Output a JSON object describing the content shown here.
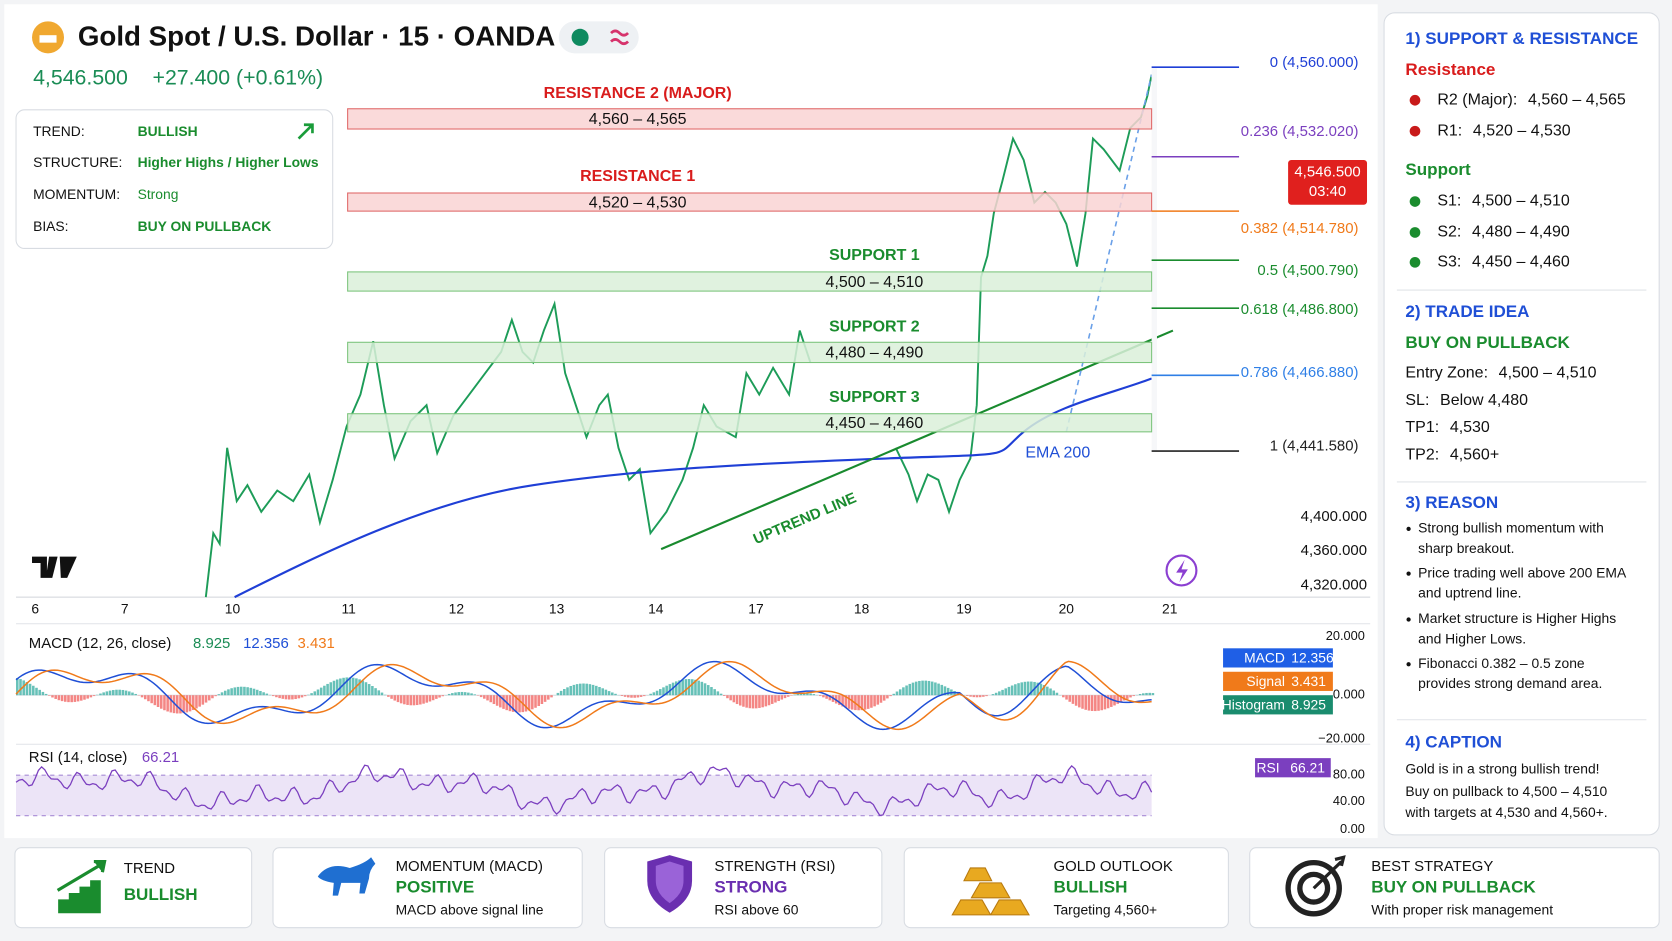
{
  "header": {
    "title": "Gold Spot / U.S. Dollar · 15 · OANDA",
    "price": "4,546.500",
    "change": "+27.400 (+0.61%)"
  },
  "summary": [
    {
      "label": "TREND:",
      "value": "BULLISH"
    },
    {
      "label": "STRUCTURE:",
      "value": "Higher Highs / Higher Lows"
    },
    {
      "label": "MOMENTUM:",
      "value": "Strong"
    },
    {
      "label": "BIAS:",
      "value": "BUY ON PULLBACK"
    }
  ],
  "zones": [
    {
      "title": "RESISTANCE 2 (MAJOR)",
      "range": "4,560 – 4,565"
    },
    {
      "title": "RESISTANCE 1",
      "range": "4,520 – 4,530"
    },
    {
      "title": "SUPPORT 1",
      "range": "4,500 – 4,510"
    },
    {
      "title": "SUPPORT 2",
      "range": "4,480 – 4,490"
    },
    {
      "title": "SUPPORT 3",
      "range": "4,450 – 4,460"
    }
  ],
  "annotations": {
    "uptrend": "UPTREND LINE",
    "ema": "EMA 200"
  },
  "fib": [
    "0 (4,560.000)",
    "0.236 (4,532.020)",
    "0.382 (4,514.780)",
    "0.5 (4,500.790)",
    "0.618 (4,486.800)",
    "0.786 (4,466.880)",
    "1 (4,441.580)"
  ],
  "price_tag": {
    "price": "4,546.500",
    "countdown": "03:40"
  },
  "price_axis": [
    "4,400.000",
    "4,360.000",
    "4,320.000"
  ],
  "dates": [
    "6",
    "7",
    "10",
    "11",
    "12",
    "13",
    "14",
    "17",
    "18",
    "19",
    "20",
    "21"
  ],
  "macd": {
    "title": "MACD (12, 26, close)",
    "values": [
      "8.925",
      "12.356",
      "3.431"
    ],
    "tags": [
      {
        "name": "MACD",
        "value": "12.356"
      },
      {
        "name": "Signal",
        "value": "3.431"
      },
      {
        "name": "Histogram",
        "value": "8.925"
      }
    ],
    "axis": [
      "20.000",
      "0.000",
      "−20.000"
    ]
  },
  "rsi": {
    "title": "RSI (14, close)",
    "value": "66.21",
    "tag": {
      "name": "RSI",
      "value": "66.21"
    },
    "axis": [
      "80.00",
      "40.00",
      "0.00"
    ]
  },
  "panel": {
    "sr": {
      "heading": "1) SUPPORT & RESISTANCE",
      "resistance_title": "Resistance",
      "resistance": [
        {
          "label": "R2 (Major):",
          "range": "4,560 – 4,565"
        },
        {
          "label": "R1:",
          "range": "4,520 – 4,530"
        }
      ],
      "support_title": "Support",
      "support": [
        {
          "label": "S1:",
          "range": "4,500 – 4,510"
        },
        {
          "label": "S2:",
          "range": "4,480 – 4,490"
        },
        {
          "label": "S3:",
          "range": "4,450 – 4,460"
        }
      ]
    },
    "trade": {
      "heading": "2) TRADE IDEA",
      "idea": "BUY ON PULLBACK",
      "rows": [
        {
          "label": "Entry Zone:",
          "value": "4,500 – 4,510"
        },
        {
          "label": "SL:",
          "value": "Below 4,480"
        },
        {
          "label": "TP1:",
          "value": "4,530"
        },
        {
          "label": "TP2:",
          "value": "4,560+"
        }
      ]
    },
    "reason": {
      "heading": "3) REASON",
      "bullets": [
        [
          "Strong bullish momentum with",
          "sharp breakout."
        ],
        [
          "Price trading well above 200 EMA",
          "and uptrend line."
        ],
        [
          "Market structure is Higher Highs",
          "and Higher Lows."
        ],
        [
          "Fibonacci 0.382 – 0.5 zone",
          "provides strong demand area."
        ]
      ]
    },
    "caption": {
      "heading": "4) CAPTION",
      "lines": [
        "Gold is in a strong bullish trend!",
        "Buy on pullback to 4,500 – 4,510",
        "with targets at 4,530 and 4,560+."
      ]
    }
  },
  "cards": [
    {
      "title": "TREND",
      "value": "BULLISH"
    },
    {
      "title": "MOMENTUM (MACD)",
      "value": "POSITIVE",
      "note": "MACD above signal line"
    },
    {
      "title": "STRENGTH (RSI)",
      "value": "STRONG",
      "note": "RSI above 60"
    },
    {
      "title": "GOLD OUTLOOK",
      "value": "BULLISH",
      "note": "Targeting 4,560+"
    },
    {
      "title": "BEST STRATEGY",
      "value": "BUY ON PULLBACK",
      "note": "With proper risk management"
    }
  ]
}
